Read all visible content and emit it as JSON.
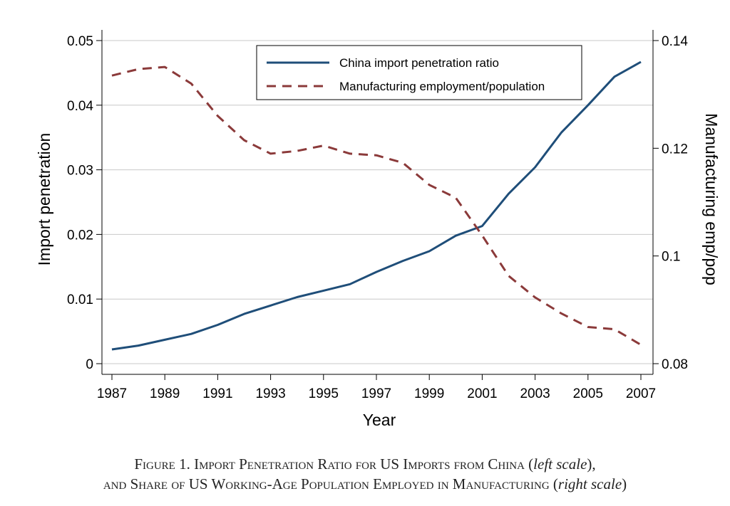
{
  "chart_data": {
    "type": "line",
    "xlabel": "Year",
    "ylabel_left": "Import penetration",
    "ylabel_right": "Manufacturing emp/pop",
    "ylim_left": [
      0,
      0.05
    ],
    "ylim_right": [
      0.08,
      0.14
    ],
    "x_ticks": [
      "1987",
      "1989",
      "1991",
      "1993",
      "1995",
      "1997",
      "1999",
      "2001",
      "2003",
      "2005",
      "2007"
    ],
    "y_left_ticks": [
      "0",
      "0.01",
      "0.02",
      "0.03",
      "0.04",
      "0.05"
    ],
    "y_right_ticks": [
      "0.08",
      "0.1",
      "0.12",
      "0.14"
    ],
    "grid": "horizontal",
    "legend_position": "top-right",
    "x": [
      1987,
      1988,
      1989,
      1990,
      1991,
      1992,
      1993,
      1994,
      1995,
      1996,
      1997,
      1998,
      1999,
      2000,
      2001,
      2002,
      2003,
      2004,
      2005,
      2006,
      2007
    ],
    "series": [
      {
        "name": "China import penetration ratio",
        "axis": "left",
        "style": "solid",
        "color": "#1f4e79",
        "values": [
          0.0022,
          0.0028,
          0.0037,
          0.0046,
          0.006,
          0.0077,
          0.009,
          0.0103,
          0.0113,
          0.0123,
          0.0142,
          0.0159,
          0.0174,
          0.0198,
          0.0213,
          0.0263,
          0.0304,
          0.0358,
          0.04,
          0.0444,
          0.0467
        ]
      },
      {
        "name": "Manufacturing employment/population",
        "axis": "right",
        "style": "dashed",
        "color": "#8b3a3a",
        "values": [
          0.1335,
          0.1347,
          0.1351,
          0.132,
          0.126,
          0.1215,
          0.119,
          0.1195,
          0.1205,
          0.119,
          0.1187,
          0.1173,
          0.1132,
          0.1108,
          0.1038,
          0.0963,
          0.0923,
          0.0893,
          0.0868,
          0.0864,
          0.0835
        ]
      }
    ]
  },
  "caption": {
    "line1_main": "Figure 1. Import Penetration Ratio for US Imports from China (",
    "line1_italic": "left scale",
    "line1_end": "),",
    "line2_main": "and Share of US Working-Age Population Employed in Manufacturing (",
    "line2_italic": "right scale",
    "line2_end": ")"
  }
}
